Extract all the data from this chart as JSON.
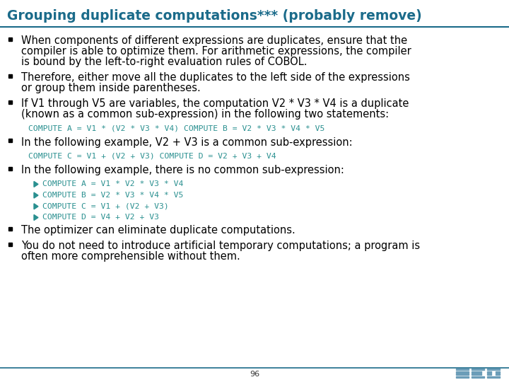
{
  "title": "Grouping duplicate computations*** (probably remove)",
  "title_color": "#1B6B8A",
  "title_fontsize": 13.5,
  "bg_color": "#FFFFFF",
  "header_line_color": "#1B6B8A",
  "body_text_color": "#000000",
  "code_text_color": "#2A9090",
  "bullet_color": "#000000",
  "page_number": "96",
  "bullets": [
    {
      "type": "bullet",
      "text": "When components of different expressions are duplicates, ensure that the\ncompiler is able to optimize them. For arithmetic expressions, the compiler\nis bound by the left-to-right evaluation rules of COBOL."
    },
    {
      "type": "bullet",
      "text": "Therefore, either move all the duplicates to the left side of the expressions\nor group them inside parentheses."
    },
    {
      "type": "bullet",
      "text": "If V1 through V5 are variables, the computation V2 * V3 * V4 is a duplicate\n(known as a common sub-expression) in the following two statements:"
    },
    {
      "type": "code_indent",
      "text": "COMPUTE A = V1 * (V2 * V3 * V4) COMPUTE B = V2 * V3 * V4 * V5"
    },
    {
      "type": "bullet",
      "text": "In the following example, V2 + V3 is a common sub-expression:"
    },
    {
      "type": "code_indent",
      "text": "COMPUTE C = V1 + (V2 + V3) COMPUTE D = V2 + V3 + V4"
    },
    {
      "type": "bullet",
      "text": "In the following example, there is no common sub-expression:"
    },
    {
      "type": "sub_code",
      "text": "COMPUTE A = V1 * V2 * V3 * V4"
    },
    {
      "type": "sub_code",
      "text": "COMPUTE B = V2 * V3 * V4 * V5"
    },
    {
      "type": "sub_code",
      "text": "COMPUTE C = V1 + (V2 + V3)"
    },
    {
      "type": "sub_code",
      "text": "COMPUTE D = V4 + V2 + V3"
    },
    {
      "type": "bullet",
      "text": "The optimizer can eliminate duplicate computations."
    },
    {
      "type": "bullet",
      "text": "You do not need to introduce artificial temporary computations; a program is\noften more comprehensible without them."
    }
  ]
}
